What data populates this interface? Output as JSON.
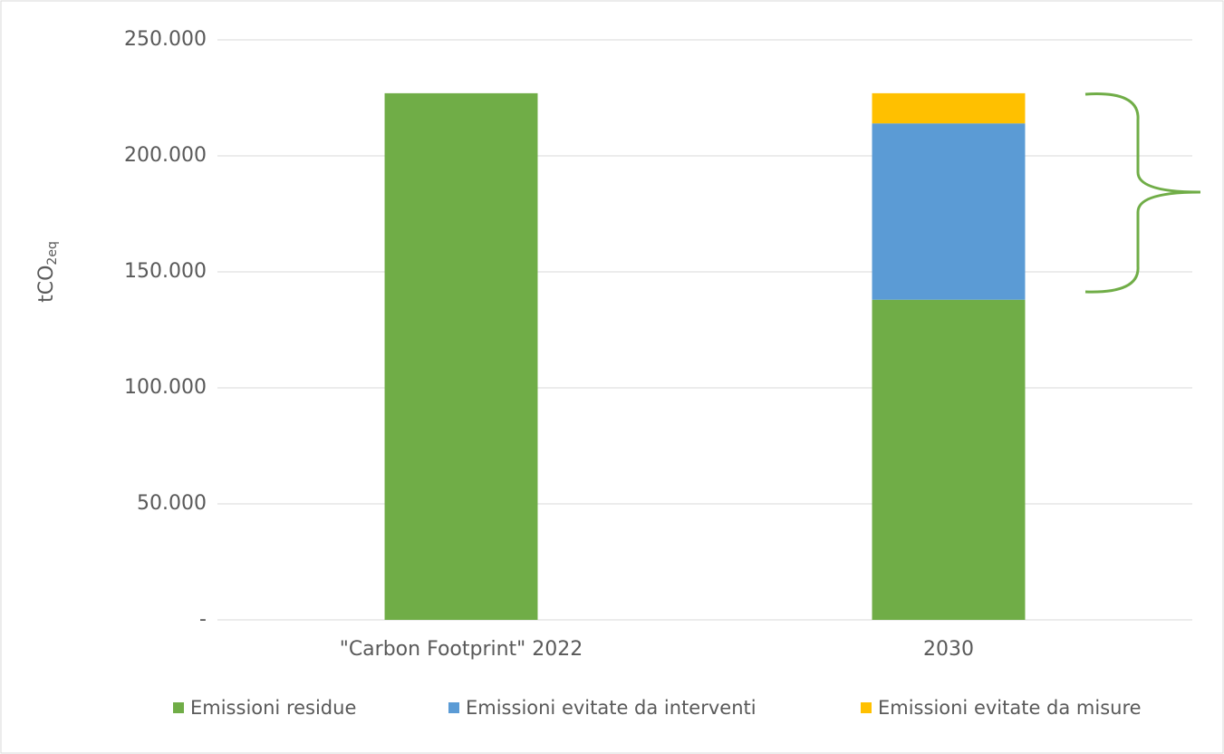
{
  "chart_data": {
    "type": "stacked_bar",
    "ylabel": [
      "tCO",
      "2eq"
    ],
    "categories": [
      "\"Carbon Footprint\" 2022",
      "2030"
    ],
    "series": [
      {
        "name": "Emissioni residue",
        "color": "#70ad47",
        "values": [
          227000,
          138000
        ]
      },
      {
        "name": "Emissioni evitate da interventi",
        "color": "#5b9bd5",
        "values": [
          null,
          76000
        ]
      },
      {
        "name": "Emissioni evitate da misure",
        "color": "#ffc000",
        "values": [
          null,
          13000
        ]
      }
    ],
    "ylim": [
      0,
      250000
    ],
    "yticks": [
      {
        "value": 0,
        "label": "-"
      },
      {
        "value": 50000,
        "label": "50.000"
      },
      {
        "value": 100000,
        "label": "100.000"
      },
      {
        "value": 150000,
        "label": "150.000"
      },
      {
        "value": 200000,
        "label": "200.000"
      },
      {
        "value": 250000,
        "label": "250.000"
      }
    ],
    "grid": true,
    "legend": "bottom"
  }
}
